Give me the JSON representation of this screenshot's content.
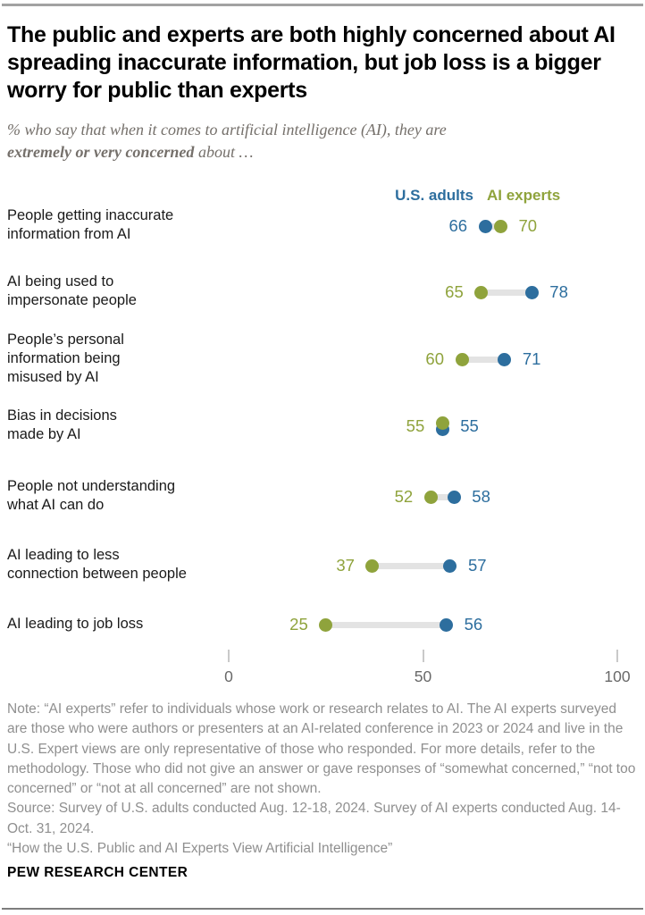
{
  "header": {
    "title": "The public and experts are both highly concerned about AI spreading inaccurate information, but job loss is a bigger worry for public than experts",
    "subtitle_line1": "% who say that when it comes to artificial intelligence (AI), they are",
    "subtitle_line2_bold": "extremely or very concerned",
    "subtitle_line2_rest": " about …"
  },
  "legend": {
    "us_adults_label": "U.S. adults",
    "ai_experts_label": "AI experts"
  },
  "colors": {
    "us_adults": "#2d6e9e",
    "ai_experts": "#8fa33c",
    "connector": "#e3e3e3",
    "tick": "#c9c9c9",
    "tick_label": "#696969"
  },
  "chart_data": {
    "type": "dumbbell",
    "categories": [
      "People getting inaccurate information from AI",
      "AI being used to impersonate people",
      "People’s personal information being misused by AI",
      "Bias in decisions made by AI",
      "People not understanding what AI can do",
      "AI leading to less connection between people",
      "AI leading to job loss"
    ],
    "series": [
      {
        "name": "U.S. adults",
        "color": "#2d6e9e",
        "values": [
          66,
          78,
          71,
          55,
          58,
          57,
          56
        ]
      },
      {
        "name": "AI experts",
        "color": "#8fa33c",
        "values": [
          70,
          65,
          60,
          55,
          52,
          37,
          25
        ]
      }
    ],
    "xlim": [
      0,
      100
    ],
    "x_ticks": [
      0,
      50,
      100
    ],
    "legend_position": "top",
    "grid": false,
    "rows": [
      {
        "label_lines": [
          "People getting inaccurate",
          "information from AI"
        ],
        "us_adults": 66,
        "ai_experts": 70
      },
      {
        "label_lines": [
          "AI being used to",
          "impersonate people"
        ],
        "us_adults": 78,
        "ai_experts": 65
      },
      {
        "label_lines": [
          "People’s personal",
          "information being",
          "misused by AI"
        ],
        "us_adults": 71,
        "ai_experts": 60
      },
      {
        "label_lines": [
          "Bias in decisions",
          "made by AI"
        ],
        "us_adults": 55,
        "ai_experts": 55
      },
      {
        "label_lines": [
          "People not understanding",
          "what AI can do"
        ],
        "us_adults": 58,
        "ai_experts": 52
      },
      {
        "label_lines": [
          "AI leading to less",
          "connection between people"
        ],
        "us_adults": 57,
        "ai_experts": 37
      },
      {
        "label_lines": [
          "AI leading to job loss"
        ],
        "us_adults": 56,
        "ai_experts": 25
      }
    ]
  },
  "footer": {
    "note": "Note: “AI experts” refer to individuals whose work or research relates to AI. The AI experts surveyed are those who were authors or presenters at an AI-related conference in 2023 or 2024 and live in the U.S. Expert views are only representative of those who responded. For more details, refer to the methodology. Those who did not give an answer or gave responses of “somewhat concerned,” “not too concerned” or “not at all concerned” are not shown.",
    "source": "Source: Survey of U.S. adults conducted Aug. 12-18, 2024. Survey of AI experts conducted Aug. 14-Oct. 31, 2024.",
    "quote": "“How the U.S. Public and AI Experts View Artificial Intelligence”",
    "brand": "PEW RESEARCH CENTER"
  }
}
